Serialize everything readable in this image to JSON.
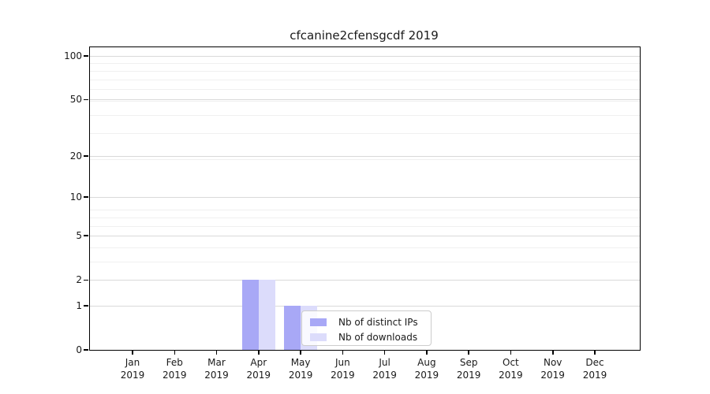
{
  "figure": {
    "background": "#ffffff"
  },
  "colors": {
    "axis": "#000000",
    "text": "#1a1a1a",
    "grid_major": "#d9d9d9",
    "grid_minor": "#f0f0f0",
    "legend_border": "#cccccc",
    "series_distinct_ips": "#a8a8f6",
    "series_downloads": "#dcdcfb"
  },
  "chart_data": {
    "type": "bar",
    "title": "cfcanine2cfensgcdf 2019",
    "categories": [
      "Jan 2019",
      "Feb 2019",
      "Mar 2019",
      "Apr 2019",
      "May 2019",
      "Jun 2019",
      "Jul 2019",
      "Aug 2019",
      "Sep 2019",
      "Oct 2019",
      "Nov 2019",
      "Dec 2019"
    ],
    "x_tick_month": [
      "Jan",
      "Feb",
      "Mar",
      "Apr",
      "May",
      "Jun",
      "Jul",
      "Aug",
      "Sep",
      "Oct",
      "Nov",
      "Dec"
    ],
    "x_tick_year": "2019",
    "series": [
      {
        "name": "Nb of distinct IPs",
        "color": "#a8a8f6",
        "values": [
          0,
          0,
          0,
          2,
          1,
          0,
          0,
          0,
          0,
          0,
          0,
          0
        ]
      },
      {
        "name": "Nb of downloads",
        "color": "#dcdcfb",
        "values": [
          0,
          0,
          0,
          2,
          1,
          0,
          0,
          0,
          0,
          0,
          0,
          0
        ]
      }
    ],
    "y_scale": "log1p",
    "y_ticks": [
      0,
      1,
      2,
      5,
      10,
      20,
      50,
      100
    ],
    "y_minor_lines": [
      3,
      4,
      6,
      7,
      8,
      19,
      29,
      39,
      49,
      59,
      69,
      79,
      89
    ],
    "ylim": [
      0,
      100
    ],
    "grid": true,
    "legend": {
      "position": "lower center-right inside plot",
      "entries": [
        "Nb of distinct IPs",
        "Nb of downloads"
      ]
    }
  }
}
